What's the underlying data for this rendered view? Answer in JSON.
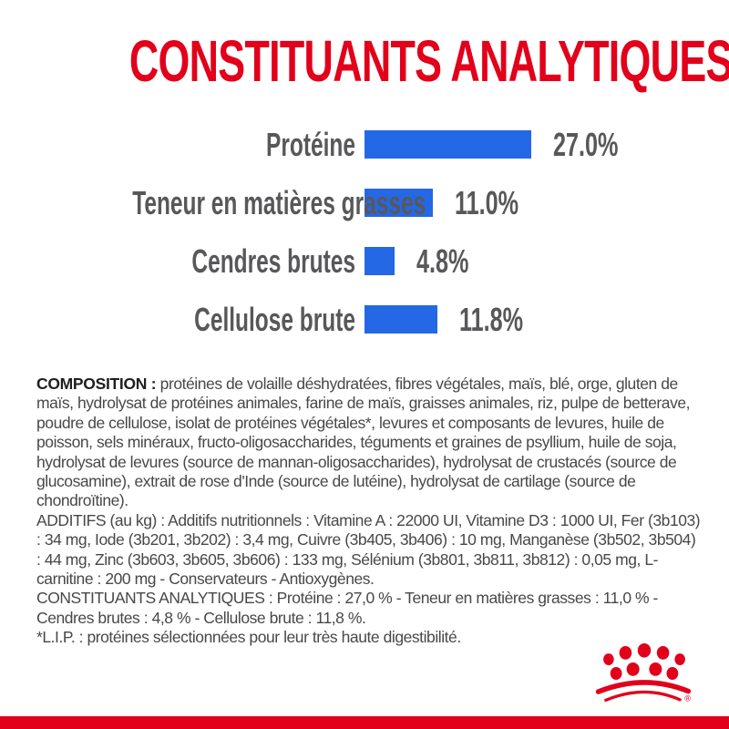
{
  "page": {
    "title": "CONSTITUANTS ANALYTIQUES",
    "accent_red": "#e2001a",
    "bar_blue": "#2468e6",
    "label_gray": "#58585a"
  },
  "chart_data": {
    "type": "bar",
    "orientation": "horizontal",
    "title": "CONSTITUANTS ANALYTIQUES",
    "xlabel": "",
    "ylabel": "",
    "xlim": [
      0,
      30
    ],
    "grid": false,
    "bar_color": "#2468e6",
    "categories": [
      "Protéine",
      "Teneur en matières grasses",
      "Cendres brutes",
      "Cellulose brute"
    ],
    "values": [
      27.0,
      11.0,
      4.8,
      11.8
    ],
    "value_labels": [
      "27.0%",
      "11.0%",
      "4.8%",
      "11.8%"
    ]
  },
  "info": {
    "composition_label": "COMPOSITION :",
    "composition_text": "protéines de volaille déshydratées, fibres végétales, maïs, blé, orge, gluten de maïs, hydrolysat de protéines animales, farine de maïs, graisses animales, riz, pulpe de betterave, poudre de cellulose, isolat de protéines végétales*, levures et composants de levures, huile de poisson, sels minéraux, fructo-oligosaccharides, téguments et graines de psyllium, huile de soja, hydrolysat de levures (source de mannan-oligosaccharides), hydrolysat de crustacés (source de glucosamine), extrait de rose d'Inde (source de lutéine), hydrolysat de cartilage (source de chondroïtine).",
    "additifs_text": "ADDITIFS (au kg) : Additifs nutritionnels : Vitamine A : 22000 UI, Vitamine D3 : 1000 UI, Fer (3b103) : 34 mg, Iode (3b201, 3b202) : 3,4 mg, Cuivre (3b405, 3b406) : 10 mg, Manganèse (3b502, 3b504) : 44 mg, Zinc (3b603, 3b605, 3b606) : 133 mg, Sélénium (3b801, 3b811, 3b812) : 0,05 mg, L-carnitine : 200 mg - Conservateurs - Antioxygènes.",
    "constituants_text": "CONSTITUANTS ANALYTIQUES : Protéine : 27,0 % - Teneur en matières grasses : 11,0 % - Cendres brutes : 4,8 % - Cellulose brute : 11,8 %.",
    "lip_note": "*L.I.P. : protéines sélectionnées pour leur très haute digestibilité."
  },
  "footer": {
    "logo_icon": "royal-canin-crown-icon",
    "registered_mark": "®"
  }
}
